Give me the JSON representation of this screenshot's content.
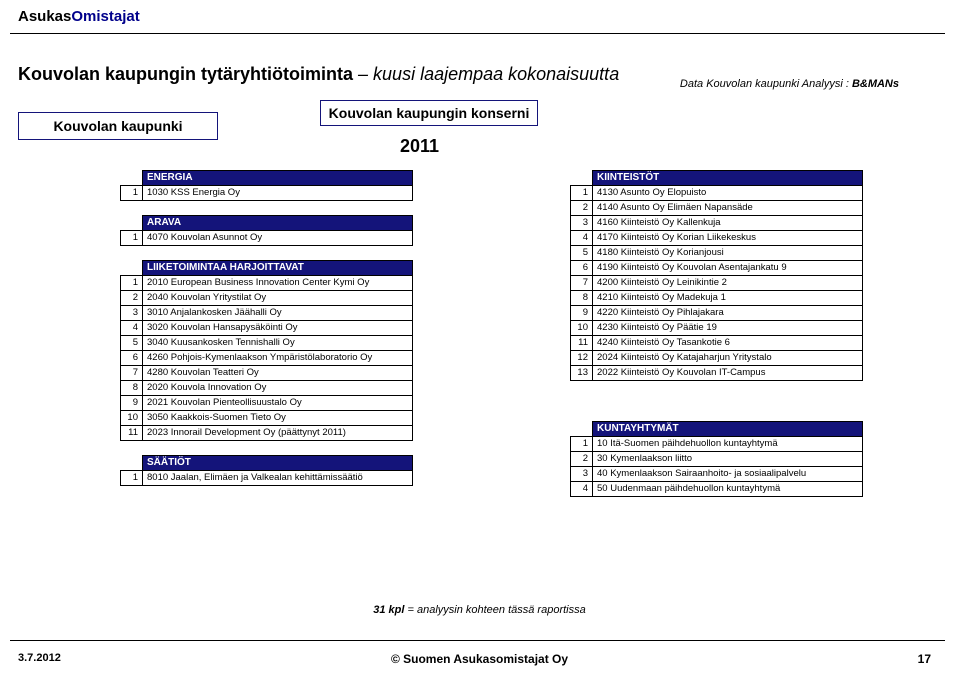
{
  "logo": {
    "part1": "Asukas",
    "part2": "Omistajat"
  },
  "title": {
    "h1": "Kouvolan kaupungin tytäryhtiötoiminta",
    "h2": "– kuusi laajempaa kokonaisuutta"
  },
  "source": {
    "text": "Data Kouvolan kaupunki   Analyysi : ",
    "bold": "B&MANs"
  },
  "boxes": {
    "left": "Kouvolan kaupunki",
    "mid": "Kouvolan kaupungin konserni",
    "year": "2011"
  },
  "energia": {
    "h": "ENERGIA",
    "r": [
      [
        "1",
        "1030 KSS Energia Oy"
      ]
    ]
  },
  "arava": {
    "h": "ARAVA",
    "r": [
      [
        "1",
        "4070 Kouvolan Asunnot Oy"
      ]
    ]
  },
  "liike": {
    "h": "LIIKETOIMINTAA HARJOITTAVAT",
    "r": [
      [
        "1",
        "2010 European Business Innovation Center Kymi Oy"
      ],
      [
        "2",
        "2040 Kouvolan Yritystilat Oy"
      ],
      [
        "3",
        "3010 Anjalankosken Jäähalli Oy"
      ],
      [
        "4",
        "3020 Kouvolan Hansapysäköinti Oy"
      ],
      [
        "5",
        "3040 Kuusankosken Tennishalli Oy"
      ],
      [
        "6",
        "4260 Pohjois-Kymenlaakson Ympäristölaboratorio Oy"
      ],
      [
        "7",
        "4280 Kouvolan Teatteri Oy"
      ],
      [
        "8",
        "2020 Kouvola Innovation Oy"
      ],
      [
        "9",
        "2021 Kouvolan Pienteollisuustalo Oy"
      ],
      [
        "10",
        "3050 Kaakkois-Suomen Tieto Oy"
      ],
      [
        "11",
        "2023 Innorail Development Oy (päättynyt 2011)"
      ]
    ]
  },
  "saatiot": {
    "h": "SÄÄTIÖT",
    "r": [
      [
        "1",
        "8010 Jaalan, Elimäen ja Valkealan kehittämissäätiö"
      ]
    ]
  },
  "kiint": {
    "h": "KIINTEISTÖT",
    "r": [
      [
        "1",
        "4130 Asunto Oy Elopuisto"
      ],
      [
        "2",
        "4140 Asunto Oy Elimäen Napansäde"
      ],
      [
        "3",
        "4160 Kiinteistö Oy Kallenkuja"
      ],
      [
        "4",
        "4170 Kiinteistö Oy Korian Liikekeskus"
      ],
      [
        "5",
        "4180 Kiinteistö Oy Korianjousi"
      ],
      [
        "6",
        "4190 Kiinteistö Oy Kouvolan Asentajankatu 9"
      ],
      [
        "7",
        "4200 Kiinteistö Oy Leinikintie 2"
      ],
      [
        "8",
        "4210 Kiinteistö Oy Madekuja 1"
      ],
      [
        "9",
        "4220 Kiinteistö Oy Pihlajakara"
      ],
      [
        "10",
        "4230 Kiinteistö Oy Päätie 19"
      ],
      [
        "11",
        "4240 Kiinteistö Oy Tasankotie 6"
      ],
      [
        "12",
        "2024 Kiinteistö Oy Katajaharjun Yritystalo"
      ],
      [
        "13",
        "2022 Kiinteistö Oy Kouvolan IT-Campus"
      ]
    ]
  },
  "kunta": {
    "h": "KUNTAYHTYMÄT",
    "r": [
      [
        "1",
        "10 Itä-Suomen päihdehuollon kuntayhtymä"
      ],
      [
        "2",
        "30 Kymenlaakson liitto"
      ],
      [
        "3",
        "40 Kymenlaakson Sairaanhoito- ja sosiaalipalvelu"
      ],
      [
        "4",
        "50 Uudenmaan päihdehuollon kuntayhtymä"
      ]
    ]
  },
  "footnote": {
    "bold": "31 kpl",
    "text": " = analyysin kohteen tässä raportissa"
  },
  "footer": {
    "date": "3.7.2012",
    "center": "© Suomen Asukasomistajat Oy",
    "page": "17"
  }
}
